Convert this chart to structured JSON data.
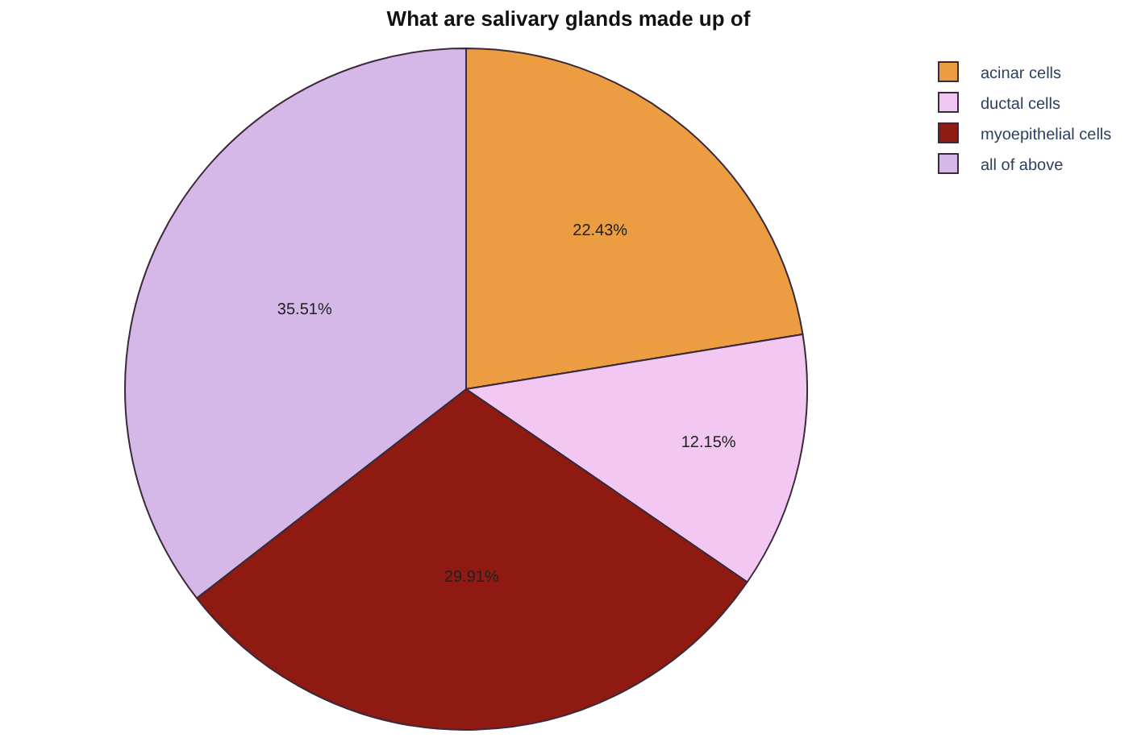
{
  "chart_data": {
    "type": "pie",
    "title": "What are salivary glands made up of",
    "categories": [
      "acinar cells",
      "ductal cells",
      "myoepithelial cells",
      "all of above"
    ],
    "values": [
      22.43,
      12.15,
      29.91,
      35.51
    ],
    "colors": [
      "#ec9c41",
      "#f2c8f2",
      "#8e1a12",
      "#d6b8e8"
    ],
    "value_labels": [
      "22.43%",
      "12.15%",
      "29.91%",
      "35.51%"
    ],
    "legend": "top right"
  }
}
